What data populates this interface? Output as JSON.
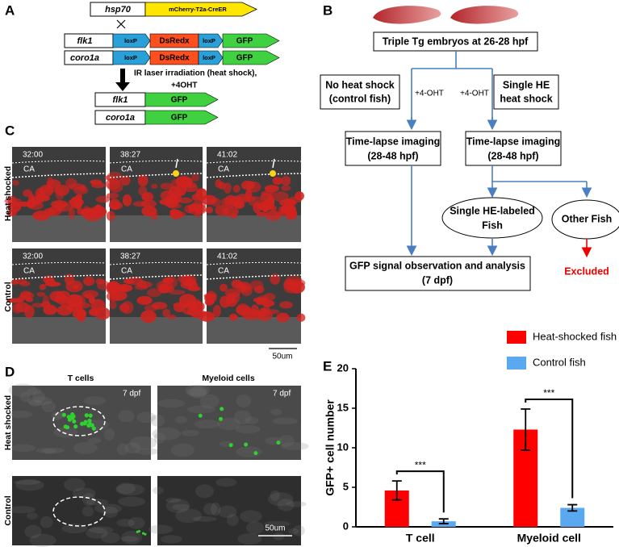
{
  "panels": {
    "a": "A",
    "b": "B",
    "c": "C",
    "d": "D",
    "e": "E"
  },
  "panel_a": {
    "driver": {
      "promoter": "hsp70",
      "cassette": "mCherry-T2a-CreER"
    },
    "reporters": [
      {
        "promoter": "flk1",
        "loxp_1": "loxP",
        "dsred": "DsRedx",
        "loxp_2": "loxP",
        "gfp": "GFP"
      },
      {
        "promoter": "coro1a",
        "loxp_1": "loxP",
        "dsred": "DsRedx",
        "loxp_2": "loxP",
        "gfp": "GFP"
      }
    ],
    "treatment": [
      "IR laser irradiation (heat shock),",
      "+4OHT"
    ],
    "results": [
      {
        "promoter": "flk1",
        "gfp": "GFP"
      },
      {
        "promoter": "coro1a",
        "gfp": "GFP"
      }
    ]
  },
  "panel_b": {
    "start": "Triple Tg embryos at 26-28 hpf",
    "left": [
      "No heat shock",
      "(control fish)"
    ],
    "right": [
      "Single HE",
      "heat shock"
    ],
    "drug_left": "+4-OHT",
    "drug_right": "+4-OHT",
    "imaging_left": [
      "Time-lapse imaging",
      "(28-48 hpf)"
    ],
    "imaging_right": [
      "Time-lapse imaging",
      "(28-48 hpf)"
    ],
    "labeled": [
      "Single HE-labeled",
      "Fish"
    ],
    "other": "Other Fish",
    "observation": [
      "GFP signal observation and analysis",
      "(7 dpf)"
    ],
    "excluded": "Excluded"
  },
  "panel_c": {
    "times": [
      "32:00",
      "38:27",
      "41:02"
    ],
    "vessel": "CA",
    "rows": [
      "Heat shocked",
      "Control"
    ],
    "scale": "50um"
  },
  "panel_d": {
    "columns": [
      "T cells",
      "Myeloid cells"
    ],
    "stage": "7 dpf",
    "rows": [
      "Heat shocked",
      "Control"
    ],
    "scale": "50um"
  },
  "chart_data": {
    "type": "bar",
    "y_label": "GFP+ cell number",
    "categories": [
      "T cell",
      "Myeloid cell"
    ],
    "series": [
      {
        "name": "Heat-shocked fish",
        "color": "#ff0000",
        "values": [
          4.6,
          12.3
        ],
        "errors": [
          1.2,
          2.6
        ]
      },
      {
        "name": "Control fish",
        "color": "#5aa8f0",
        "values": [
          0.7,
          2.4
        ],
        "errors": [
          0.3,
          0.4
        ]
      }
    ],
    "significance": [
      "***",
      "***"
    ],
    "ylim": [
      0,
      20
    ],
    "yticks": [
      0,
      5,
      10,
      15,
      20
    ]
  }
}
